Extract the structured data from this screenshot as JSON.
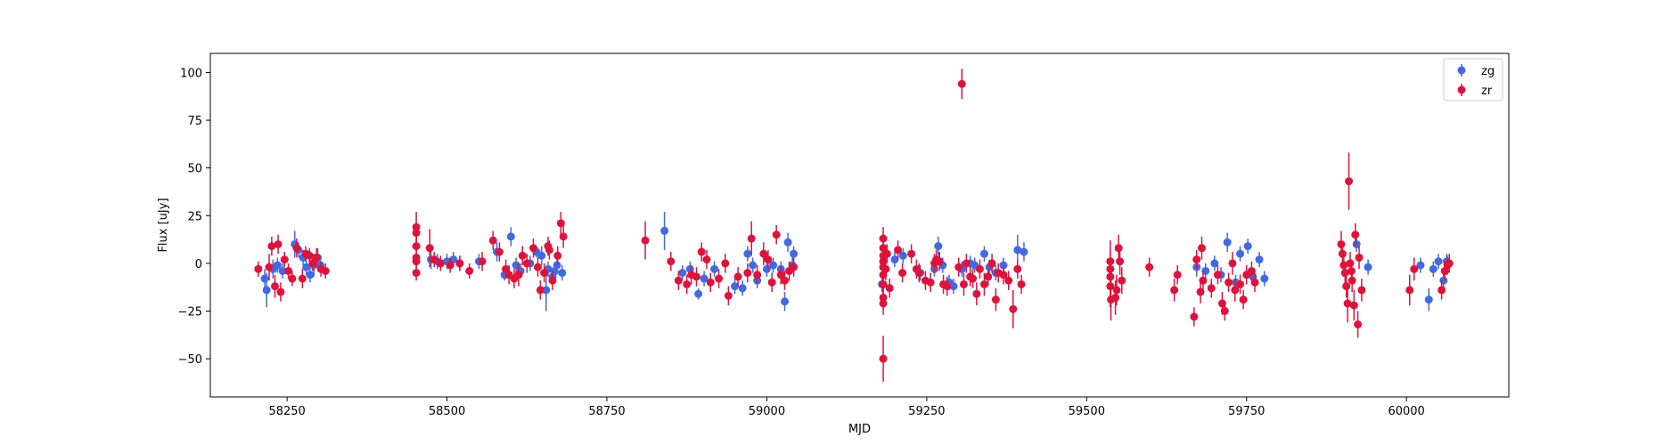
{
  "chart_data": {
    "type": "scatter",
    "xlabel": "MJD",
    "ylabel": "Flux [uJy]",
    "xlim": [
      58130,
      60160
    ],
    "ylim": [
      -70,
      110
    ],
    "xticks": [
      58250,
      58500,
      58750,
      59000,
      59250,
      59500,
      59750,
      60000
    ],
    "yticks": [
      -50,
      -25,
      0,
      25,
      50,
      75,
      100
    ],
    "grid": false,
    "legend_position": "top-right",
    "series": [
      {
        "name": "zg",
        "color": "#4169e1",
        "points": [
          [
            58215,
            -8,
            5
          ],
          [
            58218,
            -14,
            9
          ],
          [
            58228,
            -3,
            5
          ],
          [
            58235,
            -1,
            4
          ],
          [
            58243,
            -4,
            4
          ],
          [
            58262,
            10,
            7
          ],
          [
            58268,
            7,
            4
          ],
          [
            58275,
            3,
            4
          ],
          [
            58280,
            -2,
            4
          ],
          [
            58286,
            -6,
            4
          ],
          [
            58292,
            -1,
            6
          ],
          [
            58298,
            3,
            5
          ],
          [
            58302,
            -1,
            4
          ],
          [
            58475,
            2,
            5
          ],
          [
            58485,
            1,
            4
          ],
          [
            58500,
            1,
            4
          ],
          [
            58510,
            2,
            4
          ],
          [
            58520,
            0,
            4
          ],
          [
            58550,
            1,
            4
          ],
          [
            58578,
            6,
            5
          ],
          [
            58590,
            -6,
            3
          ],
          [
            58600,
            14,
            5
          ],
          [
            58608,
            -1,
            4
          ],
          [
            58615,
            -4,
            4
          ],
          [
            58630,
            0,
            4
          ],
          [
            58640,
            6,
            3
          ],
          [
            58648,
            4,
            5
          ],
          [
            58655,
            -14,
            11
          ],
          [
            58658,
            -3,
            4
          ],
          [
            58665,
            -7,
            4
          ],
          [
            58668,
            -4,
            4
          ],
          [
            58672,
            -1,
            5
          ],
          [
            58680,
            -5,
            4
          ],
          [
            58840,
            17,
            10
          ],
          [
            58868,
            -5,
            4
          ],
          [
            58880,
            -3,
            4
          ],
          [
            58893,
            -16,
            3
          ],
          [
            58902,
            -8,
            4
          ],
          [
            58918,
            -3,
            4
          ],
          [
            58950,
            -12,
            4
          ],
          [
            58962,
            -13,
            4
          ],
          [
            58970,
            5,
            4
          ],
          [
            58978,
            -1,
            4
          ],
          [
            58985,
            -9,
            4
          ],
          [
            59000,
            -3,
            4
          ],
          [
            59010,
            -1,
            4
          ],
          [
            59022,
            -3,
            4
          ],
          [
            59028,
            -20,
            5
          ],
          [
            59033,
            11,
            5
          ],
          [
            59040,
            -1,
            4
          ],
          [
            59042,
            5,
            4
          ],
          [
            59180,
            -11,
            4
          ],
          [
            59200,
            2,
            4
          ],
          [
            59213,
            4,
            4
          ],
          [
            59240,
            -5,
            4
          ],
          [
            59262,
            -3,
            4
          ],
          [
            59268,
            9,
            5
          ],
          [
            59275,
            -1,
            4
          ],
          [
            59285,
            -10,
            4
          ],
          [
            59292,
            -12,
            4
          ],
          [
            59305,
            -3,
            4
          ],
          [
            59318,
            0,
            4
          ],
          [
            59325,
            -1,
            4
          ],
          [
            59340,
            5,
            4
          ],
          [
            59348,
            -2,
            4
          ],
          [
            59358,
            -5,
            4
          ],
          [
            59370,
            -1,
            4
          ],
          [
            59392,
            7,
            8
          ],
          [
            59402,
            6,
            5
          ],
          [
            59672,
            -2,
            5
          ],
          [
            59686,
            -4,
            4
          ],
          [
            59700,
            0,
            4
          ],
          [
            59710,
            -6,
            4
          ],
          [
            59720,
            11,
            5
          ],
          [
            59733,
            -10,
            4
          ],
          [
            59740,
            5,
            4
          ],
          [
            59752,
            9,
            4
          ],
          [
            59760,
            -7,
            4
          ],
          [
            59770,
            2,
            4
          ],
          [
            59778,
            -8,
            4
          ],
          [
            59922,
            10,
            4
          ],
          [
            59940,
            -2,
            4
          ],
          [
            60022,
            -1,
            4
          ],
          [
            60035,
            -19,
            6
          ],
          [
            60042,
            -3,
            4
          ],
          [
            60050,
            1,
            4
          ],
          [
            60058,
            -9,
            4
          ],
          [
            60063,
            1,
            4
          ]
        ]
      },
      {
        "name": "zr",
        "color": "#dc143c",
        "points": [
          [
            58205,
            -3,
            4
          ],
          [
            58222,
            -2,
            7
          ],
          [
            58226,
            9,
            5
          ],
          [
            58231,
            -12,
            6
          ],
          [
            58236,
            10,
            5
          ],
          [
            58240,
            -15,
            5
          ],
          [
            58246,
            2,
            4
          ],
          [
            58252,
            -4,
            4
          ],
          [
            58258,
            -8,
            4
          ],
          [
            58265,
            8,
            5
          ],
          [
            58274,
            -8,
            5
          ],
          [
            58279,
            5,
            4
          ],
          [
            58285,
            4,
            4
          ],
          [
            58290,
            0,
            4
          ],
          [
            58296,
            3,
            5
          ],
          [
            58303,
            -3,
            4
          ],
          [
            58310,
            -4,
            4
          ],
          [
            58452,
            19,
            8
          ],
          [
            58452,
            16,
            5
          ],
          [
            58452,
            9,
            4
          ],
          [
            58452,
            3,
            4
          ],
          [
            58452,
            1,
            4
          ],
          [
            58452,
            -5,
            4
          ],
          [
            58473,
            8,
            10
          ],
          [
            58480,
            2,
            4
          ],
          [
            58490,
            0,
            4
          ],
          [
            58505,
            -1,
            4
          ],
          [
            58520,
            0,
            4
          ],
          [
            58535,
            -4,
            4
          ],
          [
            58555,
            1,
            5
          ],
          [
            58572,
            12,
            5
          ],
          [
            58582,
            6,
            5
          ],
          [
            58592,
            -3,
            5
          ],
          [
            58597,
            -6,
            5
          ],
          [
            58605,
            -8,
            5
          ],
          [
            58612,
            -6,
            6
          ],
          [
            58618,
            4,
            5
          ],
          [
            58625,
            0,
            5
          ],
          [
            58635,
            8,
            5
          ],
          [
            58642,
            -2,
            5
          ],
          [
            58646,
            -14,
            5
          ],
          [
            58652,
            -5,
            5
          ],
          [
            58658,
            9,
            5
          ],
          [
            58660,
            7,
            5
          ],
          [
            58665,
            -9,
            5
          ],
          [
            58673,
            4,
            5
          ],
          [
            58678,
            21,
            6
          ],
          [
            58682,
            14,
            6
          ],
          [
            58810,
            12,
            10
          ],
          [
            58850,
            1,
            5
          ],
          [
            58862,
            -9,
            5
          ],
          [
            58875,
            -11,
            5
          ],
          [
            58882,
            -6,
            5
          ],
          [
            58890,
            -7,
            5
          ],
          [
            58898,
            6,
            5
          ],
          [
            58906,
            2,
            5
          ],
          [
            58912,
            -10,
            5
          ],
          [
            58925,
            -8,
            5
          ],
          [
            58935,
            0,
            5
          ],
          [
            58940,
            -17,
            5
          ],
          [
            58955,
            -7,
            5
          ],
          [
            58970,
            -5,
            5
          ],
          [
            58976,
            13,
            9
          ],
          [
            58985,
            -6,
            5
          ],
          [
            58995,
            5,
            6
          ],
          [
            59002,
            2,
            5
          ],
          [
            59008,
            -10,
            5
          ],
          [
            59015,
            15,
            5
          ],
          [
            59022,
            -6,
            5
          ],
          [
            59028,
            -9,
            5
          ],
          [
            59035,
            -4,
            5
          ],
          [
            59042,
            -2,
            5
          ],
          [
            59182,
            13,
            6
          ],
          [
            59182,
            8,
            5
          ],
          [
            59182,
            4,
            5
          ],
          [
            59182,
            1,
            5
          ],
          [
            59182,
            -2,
            5
          ],
          [
            59182,
            -6,
            5
          ],
          [
            59182,
            -11,
            6
          ],
          [
            59182,
            -18,
            6
          ],
          [
            59182,
            -21,
            6
          ],
          [
            59182,
            -50,
            12
          ],
          [
            59186,
            -3,
            6
          ],
          [
            59188,
            5,
            5
          ],
          [
            59192,
            -13,
            5
          ],
          [
            59205,
            7,
            5
          ],
          [
            59212,
            -5,
            5
          ],
          [
            59226,
            5,
            5
          ],
          [
            59234,
            -3,
            5
          ],
          [
            59238,
            -5,
            5
          ],
          [
            59248,
            -9,
            5
          ],
          [
            59256,
            -10,
            5
          ],
          [
            59262,
            0,
            5
          ],
          [
            59265,
            2,
            5
          ],
          [
            59270,
            1,
            5
          ],
          [
            59276,
            -11,
            5
          ],
          [
            59282,
            -12,
            5
          ],
          [
            59300,
            -2,
            5
          ],
          [
            59305,
            94,
            8
          ],
          [
            59308,
            -11,
            6
          ],
          [
            59312,
            0,
            5
          ],
          [
            59318,
            -7,
            5
          ],
          [
            59322,
            -8,
            5
          ],
          [
            59328,
            -16,
            6
          ],
          [
            59333,
            -3,
            5
          ],
          [
            59340,
            -11,
            6
          ],
          [
            59346,
            -7,
            5
          ],
          [
            59352,
            0,
            5
          ],
          [
            59358,
            -19,
            6
          ],
          [
            59362,
            -5,
            5
          ],
          [
            59370,
            -6,
            5
          ],
          [
            59378,
            -9,
            5
          ],
          [
            59385,
            -24,
            10
          ],
          [
            59392,
            -3,
            5
          ],
          [
            59398,
            -11,
            5
          ],
          [
            59537,
            1,
            11
          ],
          [
            59537,
            -3,
            10
          ],
          [
            59537,
            -7,
            10
          ],
          [
            59537,
            -12,
            11
          ],
          [
            59538,
            -19,
            11
          ],
          [
            59545,
            -18,
            9
          ],
          [
            59547,
            -14,
            8
          ],
          [
            59550,
            8,
            7
          ],
          [
            59552,
            1,
            7
          ],
          [
            59555,
            -9,
            7
          ],
          [
            59598,
            -2,
            5
          ],
          [
            59637,
            -14,
            6
          ],
          [
            59642,
            -6,
            5
          ],
          [
            59668,
            -28,
            5
          ],
          [
            59672,
            2,
            5
          ],
          [
            59678,
            -15,
            6
          ],
          [
            59680,
            8,
            6
          ],
          [
            59682,
            -9,
            5
          ],
          [
            59695,
            -13,
            5
          ],
          [
            59705,
            -6,
            5
          ],
          [
            59712,
            -21,
            6
          ],
          [
            59716,
            -25,
            5
          ],
          [
            59722,
            -10,
            5
          ],
          [
            59728,
            0,
            6
          ],
          [
            59732,
            -14,
            6
          ],
          [
            59740,
            -11,
            5
          ],
          [
            59745,
            -19,
            5
          ],
          [
            59750,
            -6,
            5
          ],
          [
            59758,
            -4,
            5
          ],
          [
            59763,
            -10,
            5
          ],
          [
            59898,
            10,
            7
          ],
          [
            59900,
            5,
            6
          ],
          [
            59902,
            -1,
            6
          ],
          [
            59904,
            -5,
            6
          ],
          [
            59906,
            -12,
            6
          ],
          [
            59908,
            -21,
            10
          ],
          [
            59910,
            43,
            15
          ],
          [
            59912,
            0,
            6
          ],
          [
            59914,
            -4,
            6
          ],
          [
            59915,
            -9,
            6
          ],
          [
            59918,
            -22,
            8
          ],
          [
            59920,
            15,
            6
          ],
          [
            59924,
            -32,
            7
          ],
          [
            59926,
            3,
            6
          ],
          [
            59930,
            -14,
            6
          ],
          [
            60005,
            -14,
            8
          ],
          [
            60012,
            -3,
            6
          ],
          [
            60055,
            -14,
            5
          ],
          [
            60060,
            -4,
            5
          ],
          [
            60064,
            -1,
            5
          ],
          [
            60067,
            0,
            5
          ]
        ]
      }
    ]
  }
}
